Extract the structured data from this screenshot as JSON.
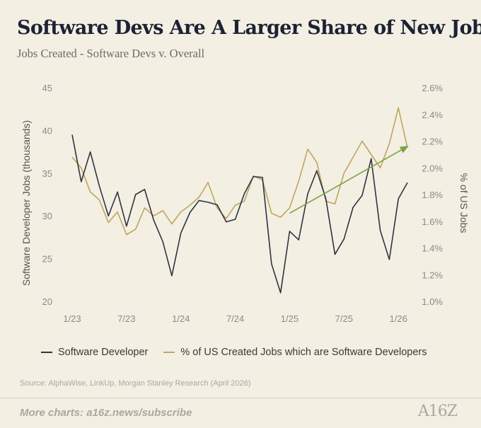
{
  "header": {
    "title": "Software Devs Are A Larger Share of New Jobs",
    "subtitle": "Jobs Created - Software Devs v. Overall"
  },
  "legend": {
    "series1": "Software Developer",
    "series2": "% of US Created Jobs which are Software Developers"
  },
  "source": "Source: AlphaWise, LinkUp, Morgan Stanley Research (April 2026)",
  "footer": {
    "more": "More charts: a16z.news/subscribe",
    "logo": "A16Z"
  },
  "colors": {
    "dev": "#2e3440",
    "pct": "#bfa55e",
    "trend": "#7fa04a",
    "grid": "#d6d1c4",
    "background": "#f3efe3"
  },
  "chart_data": {
    "type": "line",
    "ylabel": "Software Developer Jobs (thousands)",
    "y2label": "% of US Jobs",
    "ylim": [
      20,
      45
    ],
    "yticks": [
      "20",
      "25",
      "30",
      "35",
      "40",
      "45"
    ],
    "y2lim": [
      1.0,
      2.6
    ],
    "y2ticks": [
      "1.0%",
      "1.2%",
      "1.4%",
      "1.6%",
      "1.8%",
      "2.0%",
      "2.2%",
      "2.4%",
      "2.6%"
    ],
    "x": [
      "2023-01",
      "2023-02",
      "2023-03",
      "2023-04",
      "2023-05",
      "2023-06",
      "2023-07",
      "2023-08",
      "2023-09",
      "2023-10",
      "2023-11",
      "2023-12",
      "2024-01",
      "2024-02",
      "2024-03",
      "2024-04",
      "2024-05",
      "2024-06",
      "2024-07",
      "2024-08",
      "2024-09",
      "2024-10",
      "2024-11",
      "2024-12",
      "2025-01",
      "2025-02",
      "2025-03",
      "2025-04",
      "2025-05",
      "2025-06",
      "2025-07",
      "2025-08",
      "2025-09",
      "2025-10",
      "2025-11",
      "2025-12",
      "2026-01",
      "2026-02"
    ],
    "xticks": [
      {
        "x": "2023-01",
        "label": "1/23"
      },
      {
        "x": "2023-07",
        "label": "7/23"
      },
      {
        "x": "2024-01",
        "label": "1/24"
      },
      {
        "x": "2024-07",
        "label": "7/24"
      },
      {
        "x": "2025-01",
        "label": "1/25"
      },
      {
        "x": "2025-07",
        "label": "7/25"
      },
      {
        "x": "2026-01",
        "label": "1/26"
      }
    ],
    "series": [
      {
        "name": "Software Developer",
        "axis": "left",
        "values": [
          39.5,
          34.0,
          37.5,
          33.5,
          30.0,
          32.8,
          28.8,
          32.5,
          33.1,
          29.5,
          27.0,
          23.0,
          28.0,
          30.4,
          31.8,
          31.6,
          31.3,
          29.3,
          29.6,
          32.6,
          34.6,
          34.5,
          24.4,
          21.0,
          28.2,
          27.2,
          32.6,
          35.3,
          32.0,
          25.5,
          27.3,
          31.0,
          32.4,
          36.7,
          28.3,
          24.9,
          32.0,
          33.9
        ]
      },
      {
        "name": "% of US Created Jobs which are Software Developers",
        "axis": "right",
        "values": [
          2.08,
          2.0,
          1.82,
          1.76,
          1.59,
          1.67,
          1.5,
          1.54,
          1.7,
          1.64,
          1.68,
          1.58,
          1.67,
          1.72,
          1.78,
          1.89,
          1.7,
          1.62,
          1.72,
          1.75,
          1.94,
          1.91,
          1.66,
          1.63,
          1.7,
          1.9,
          2.14,
          2.04,
          1.75,
          1.73,
          1.96,
          2.08,
          2.2,
          2.1,
          2.0,
          2.18,
          2.45,
          2.15
        ]
      }
    ],
    "trend": {
      "from_x": "2025-01",
      "from": 1.66,
      "to_x": "2026-02",
      "to": 2.16,
      "axis": "right"
    },
    "grid": false,
    "legend_position": "bottom"
  }
}
